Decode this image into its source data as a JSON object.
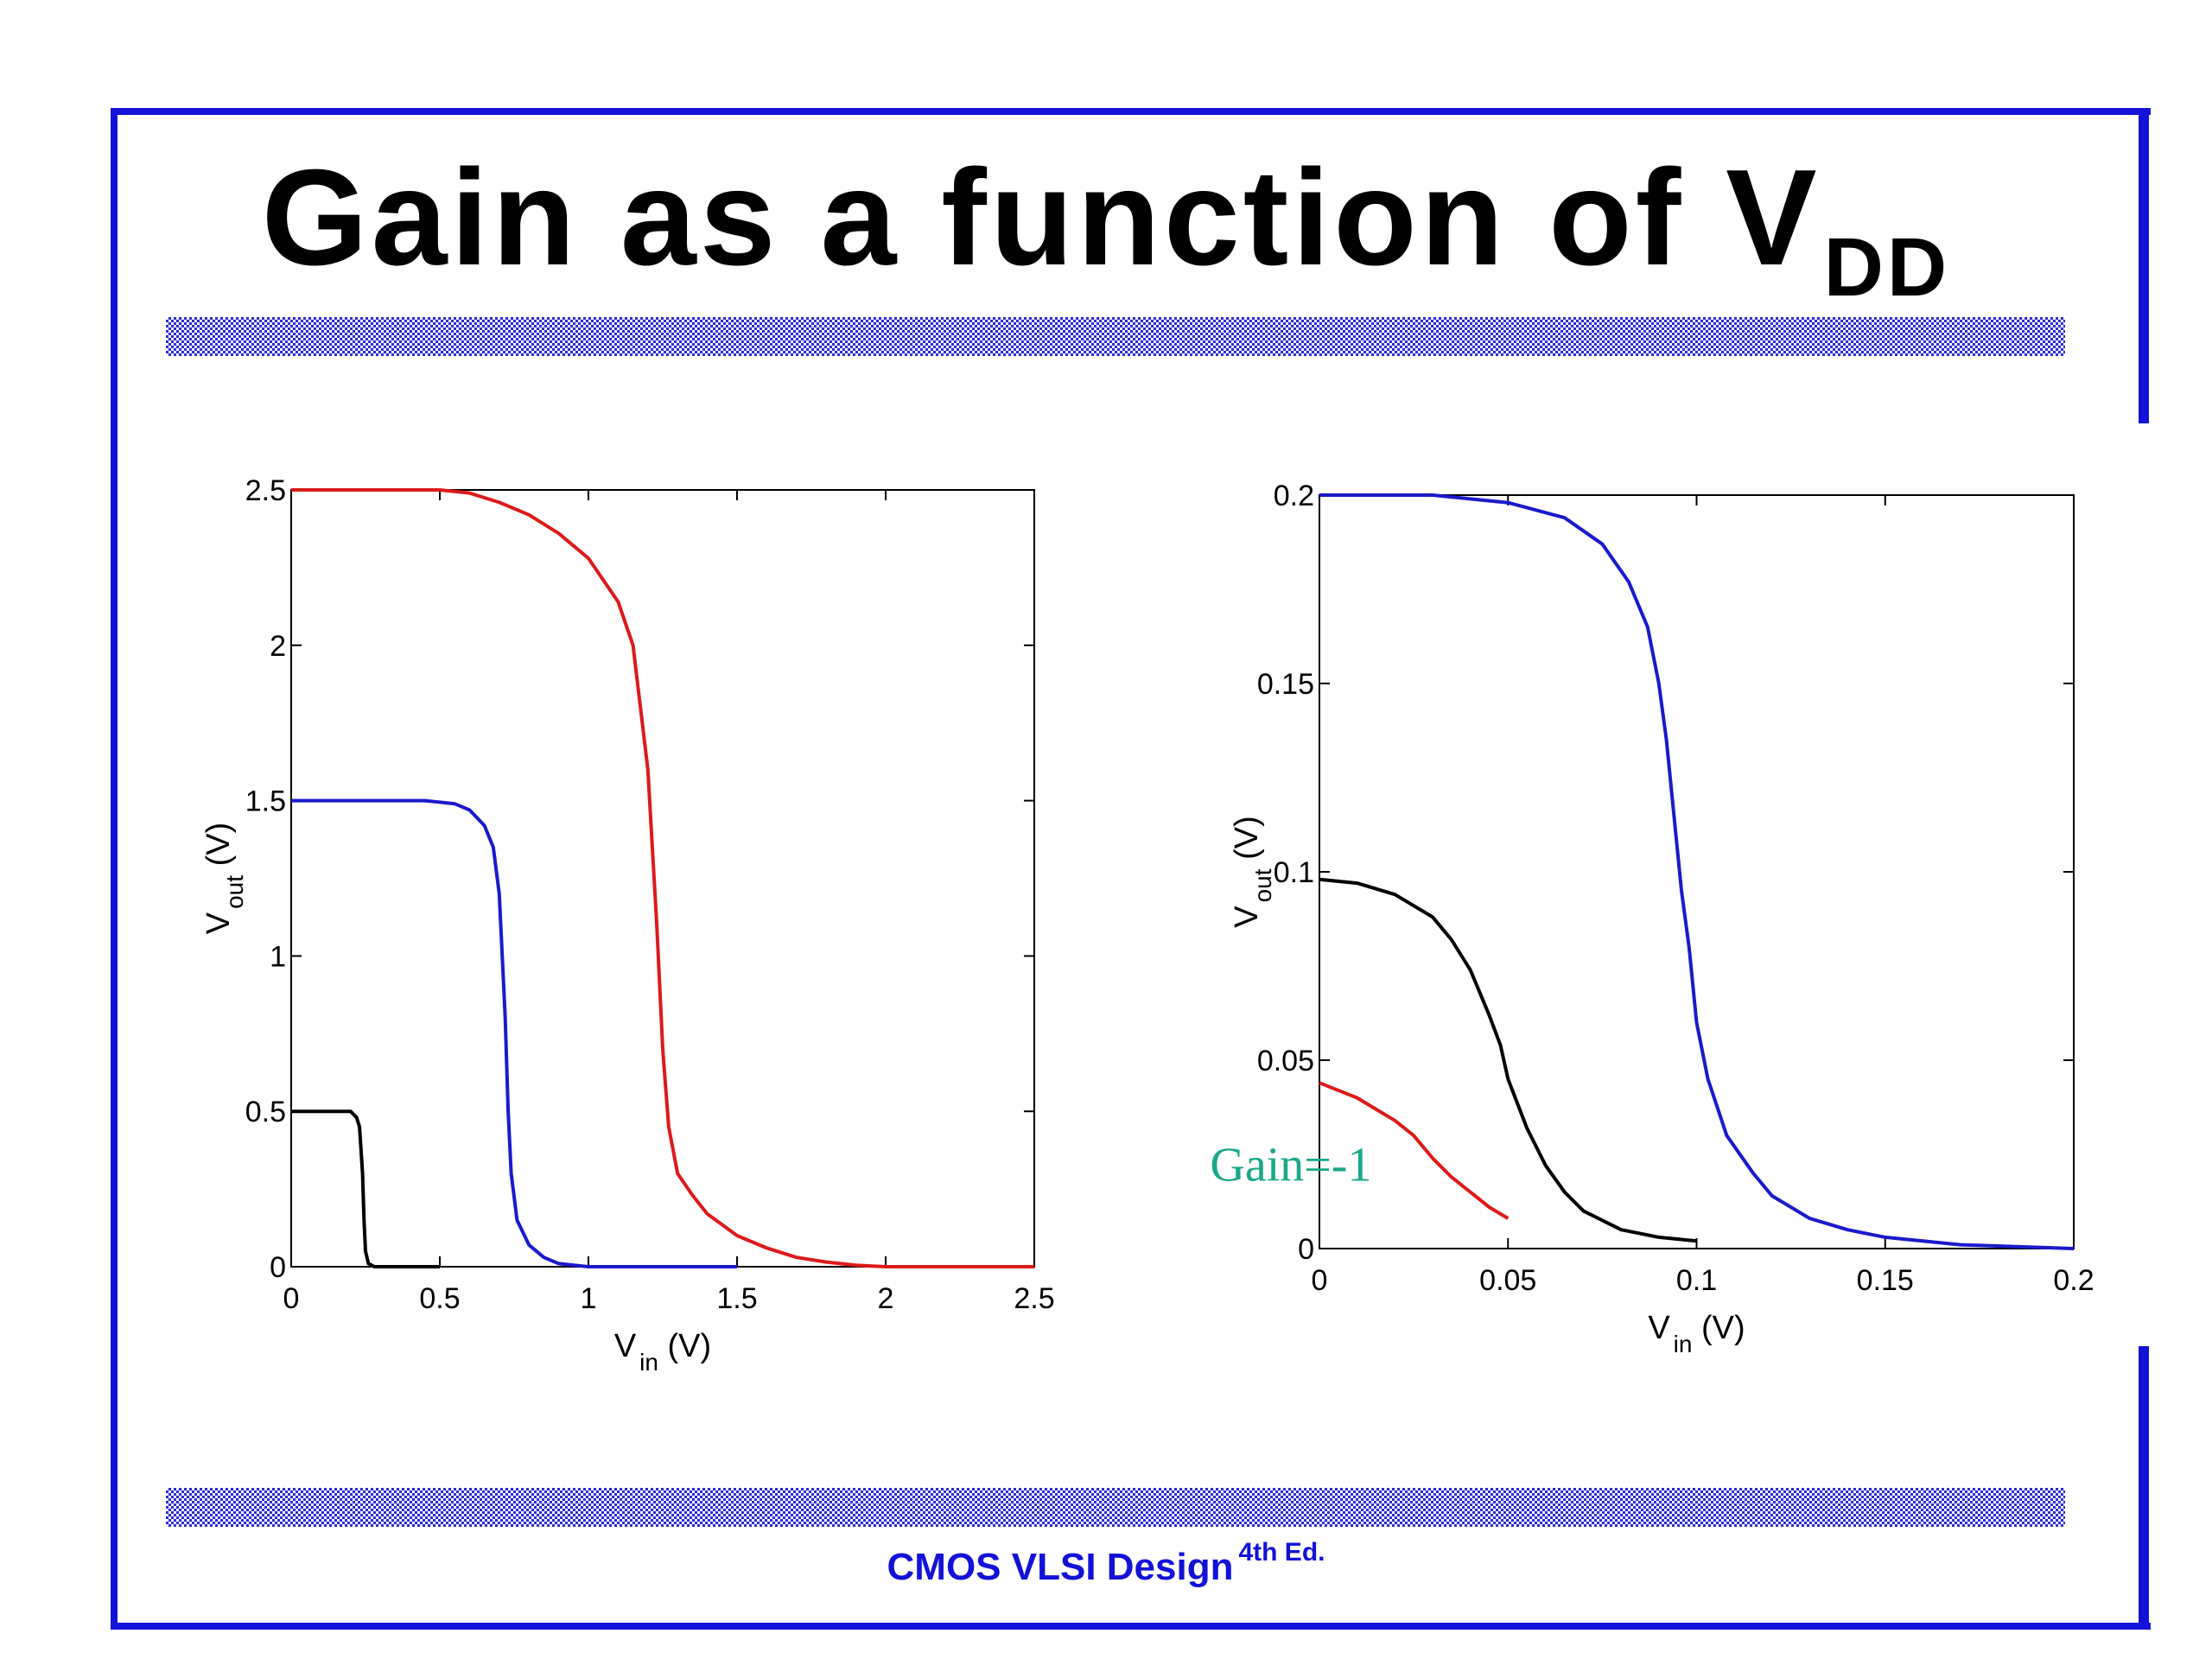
{
  "slide": {
    "title_main": "Gain as a function of V",
    "title_sub": "DD",
    "footer_main": "CMOS VLSI Design",
    "footer_sup": "4th Ed."
  },
  "colors": {
    "frame": "#1212d8",
    "red": "#dd1a1a",
    "blue": "#1a1acc",
    "black": "#000000",
    "annotation": "#1aa889"
  },
  "chart_data": [
    {
      "type": "line",
      "xlabel": "V",
      "xlabel_sub": "in",
      "xlabel_unit": "(V)",
      "ylabel": "V",
      "ylabel_sub": "out",
      "ylabel_unit": "(V)",
      "xlim": [
        0,
        2.5
      ],
      "ylim": [
        0,
        2.5
      ],
      "xticks": [
        0,
        0.5,
        1,
        1.5,
        2,
        2.5
      ],
      "xtick_labels": [
        "0",
        "0.5",
        "1",
        "1.5",
        "2",
        "2.5"
      ],
      "yticks": [
        0,
        0.5,
        1,
        1.5,
        2,
        2.5
      ],
      "ytick_labels": [
        "0",
        "0.5",
        "1",
        "1.5",
        "2",
        "2.5"
      ],
      "grid": false,
      "series": [
        {
          "color": "#dd1a1a",
          "x": [
            0,
            0.5,
            0.6,
            0.7,
            0.8,
            0.9,
            1.0,
            1.1,
            1.15,
            1.2,
            1.23,
            1.25,
            1.27,
            1.3,
            1.35,
            1.4,
            1.5,
            1.6,
            1.7,
            1.8,
            1.9,
            2.0,
            2.5
          ],
          "y": [
            2.5,
            2.5,
            2.49,
            2.46,
            2.42,
            2.36,
            2.28,
            2.14,
            2.0,
            1.6,
            1.1,
            0.7,
            0.45,
            0.3,
            0.23,
            0.17,
            0.1,
            0.06,
            0.03,
            0.015,
            0.005,
            0,
            0
          ]
        },
        {
          "color": "#1a1acc",
          "x": [
            0,
            0.45,
            0.55,
            0.6,
            0.65,
            0.68,
            0.7,
            0.72,
            0.73,
            0.74,
            0.76,
            0.8,
            0.85,
            0.9,
            1.0,
            1.5
          ],
          "y": [
            1.5,
            1.5,
            1.49,
            1.47,
            1.42,
            1.35,
            1.2,
            0.8,
            0.5,
            0.3,
            0.15,
            0.07,
            0.03,
            0.01,
            0,
            0
          ]
        },
        {
          "color": "#000000",
          "x": [
            0,
            0.2,
            0.22,
            0.23,
            0.24,
            0.245,
            0.25,
            0.26,
            0.28,
            0.5
          ],
          "y": [
            0.5,
            0.5,
            0.48,
            0.45,
            0.3,
            0.15,
            0.05,
            0.01,
            0,
            0
          ]
        }
      ]
    },
    {
      "type": "line",
      "xlabel": "V",
      "xlabel_sub": "in",
      "xlabel_unit": "(V)",
      "ylabel": "V",
      "ylabel_sub": "out",
      "ylabel_unit": "(V)",
      "xlim": [
        0,
        0.2
      ],
      "ylim": [
        0,
        0.2
      ],
      "xticks": [
        0,
        0.05,
        0.1,
        0.15,
        0.2
      ],
      "xtick_labels": [
        "0",
        "0.05",
        "0.1",
        "0.15",
        "0.2"
      ],
      "yticks": [
        0,
        0.05,
        0.1,
        0.15,
        0.2
      ],
      "ytick_labels": [
        "0",
        "0.05",
        "0.1",
        "0.15",
        "0.2"
      ],
      "grid": false,
      "annotations": [
        {
          "text": "Gain=-1",
          "x": -0.029,
          "y": 0.018
        }
      ],
      "series": [
        {
          "color": "#1a1acc",
          "x": [
            0,
            0.03,
            0.05,
            0.065,
            0.075,
            0.082,
            0.087,
            0.09,
            0.092,
            0.094,
            0.096,
            0.098,
            0.1,
            0.103,
            0.108,
            0.115,
            0.12,
            0.13,
            0.14,
            0.15,
            0.17,
            0.2
          ],
          "y": [
            0.2,
            0.2,
            0.198,
            0.194,
            0.187,
            0.177,
            0.165,
            0.15,
            0.135,
            0.115,
            0.095,
            0.08,
            0.06,
            0.045,
            0.03,
            0.02,
            0.014,
            0.008,
            0.005,
            0.003,
            0.001,
            0
          ]
        },
        {
          "color": "#000000",
          "x": [
            0,
            0.01,
            0.02,
            0.03,
            0.035,
            0.04,
            0.045,
            0.048,
            0.05,
            0.055,
            0.06,
            0.065,
            0.07,
            0.08,
            0.09,
            0.1
          ],
          "y": [
            0.098,
            0.097,
            0.094,
            0.088,
            0.082,
            0.074,
            0.062,
            0.054,
            0.045,
            0.032,
            0.022,
            0.015,
            0.01,
            0.005,
            0.003,
            0.002
          ]
        },
        {
          "color": "#dd1a1a",
          "x": [
            0,
            0.01,
            0.02,
            0.025,
            0.03,
            0.035,
            0.04,
            0.045,
            0.05
          ],
          "y": [
            0.044,
            0.04,
            0.034,
            0.03,
            0.024,
            0.019,
            0.015,
            0.011,
            0.008
          ]
        }
      ]
    }
  ]
}
